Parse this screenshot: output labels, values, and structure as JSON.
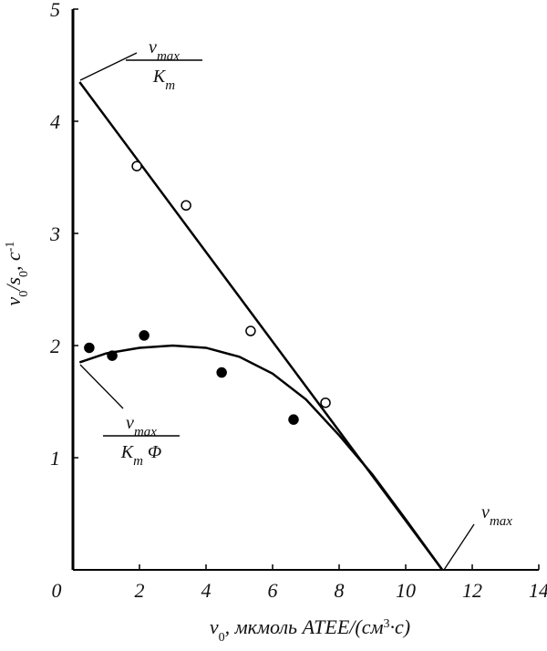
{
  "chart_data": {
    "type": "scatter",
    "x_label": [
      {
        "text": "v",
        "italic": true
      },
      {
        "text": "0",
        "script": "sub"
      },
      {
        "text": ", мкмоль АТЕЕ/(см",
        "italic": true
      },
      {
        "text": "3",
        "script": "sup"
      },
      {
        "text": "·с)",
        "italic": true
      }
    ],
    "y_label": [
      {
        "text": "v",
        "italic": true
      },
      {
        "text": "0",
        "script": "sub"
      },
      {
        "text": "/s",
        "italic": true
      },
      {
        "text": "0",
        "script": "sub"
      },
      {
        "text": ", с",
        "italic": true
      },
      {
        "text": "-1",
        "script": "sup"
      }
    ],
    "xlim": [
      0,
      14
    ],
    "ylim": [
      0,
      5
    ],
    "xticks": [
      0,
      2,
      4,
      6,
      8,
      10,
      12,
      14
    ],
    "yticks": [
      1,
      2,
      3,
      4,
      5
    ],
    "series": [
      {
        "mode": "line",
        "color": "#000000",
        "x": [
          0.2,
          11.1
        ],
        "values": [
          4.35,
          0
        ]
      },
      {
        "mode": "line",
        "color": "#000000",
        "x": [
          0.2,
          1,
          2,
          3,
          4,
          5,
          6,
          7,
          8,
          9,
          10,
          11.1
        ],
        "values": [
          1.85,
          1.93,
          1.98,
          2.0,
          1.98,
          1.9,
          1.75,
          1.52,
          1.2,
          0.85,
          0.45,
          0
        ]
      },
      {
        "mode": "markers",
        "marker": "open",
        "color": "#000000",
        "x": [
          1.92,
          3.4,
          5.34,
          7.59
        ],
        "values": [
          3.6,
          3.25,
          2.13,
          1.49
        ]
      },
      {
        "mode": "markers",
        "marker": "filled",
        "color": "#000000",
        "x": [
          0.49,
          1.18,
          2.14,
          4.47,
          6.63
        ],
        "values": [
          1.98,
          1.91,
          2.09,
          1.76,
          1.34
        ]
      }
    ],
    "annotations": [
      {
        "num_base": "v",
        "num_sub": "max",
        "den_base": "K",
        "den_sub": "m"
      },
      {
        "num_base": "v",
        "num_sub": "max",
        "den_base": "K",
        "den_sub": "m",
        "den_tail": " Φ"
      },
      {
        "num_base": "v",
        "num_sub": "max"
      }
    ]
  }
}
